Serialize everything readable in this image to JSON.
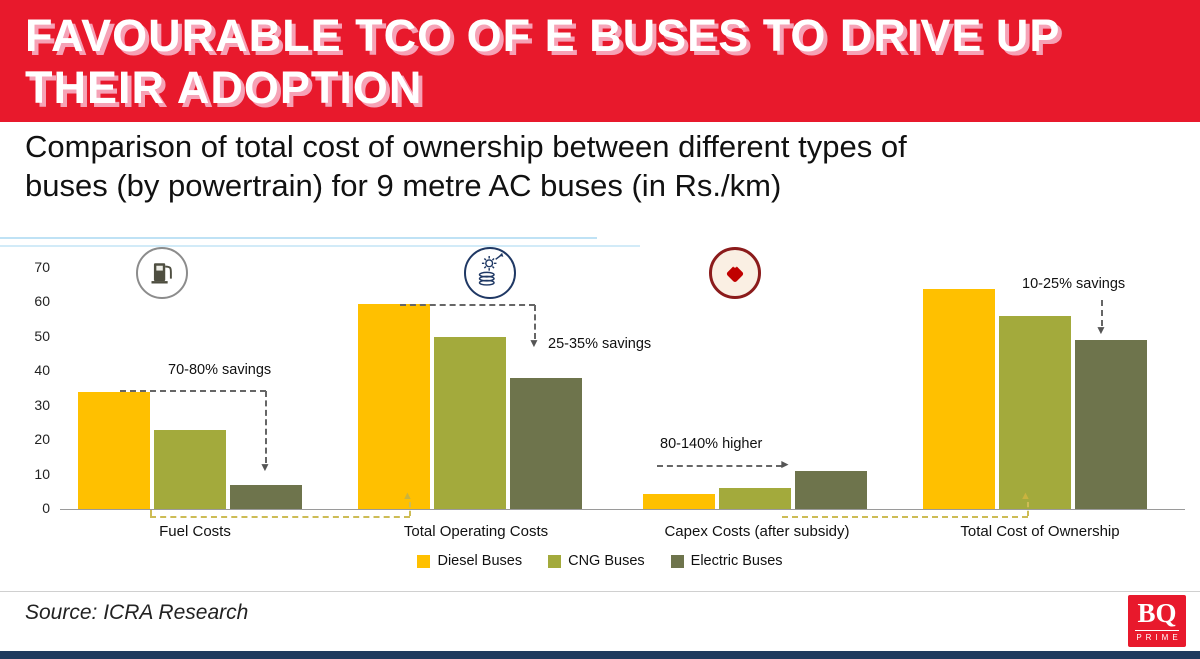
{
  "colors": {
    "accent_red": "#E8192C",
    "title_shadow": "#F6A2B6",
    "footer_strip": "#1F3A5E"
  },
  "header": {
    "title_line1": "FAVOURABLE TCO OF E BUSES TO DRIVE UP",
    "title_line2": "THEIR ADOPTION"
  },
  "subtitle": {
    "line1": "Comparison of total cost of ownership between different types of",
    "line2": "buses (by powertrain) for 9 metre AC buses (in Rs./km)"
  },
  "chart_data": {
    "type": "bar",
    "title": "",
    "unit": "Rs./km",
    "categories": [
      "Fuel Costs",
      "Total Operating Costs",
      "Capex Costs (after subsidy)",
      "Total Cost of Ownership"
    ],
    "series": [
      {
        "name": "Diesel Buses",
        "color": "#FFC000",
        "values": [
          34,
          59.5,
          4.5,
          64
        ]
      },
      {
        "name": "CNG Buses",
        "color": "#A3AA3C",
        "values": [
          23,
          50,
          6,
          56
        ]
      },
      {
        "name": "Electric Buses",
        "color": "#6E744C",
        "values": [
          7,
          38,
          11,
          49
        ]
      }
    ],
    "ylim": [
      0,
      70
    ],
    "yticks": [
      0,
      10,
      20,
      30,
      40,
      50,
      60,
      70
    ],
    "grid": false,
    "legend_position": "bottom",
    "annotations": [
      {
        "category": "Fuel Costs",
        "text": "70-80% savings"
      },
      {
        "category": "Total Operating Costs",
        "text": "25-35% savings"
      },
      {
        "category": "Capex Costs (after subsidy)",
        "text": "80-140% higher"
      },
      {
        "category": "Total Cost of Ownership",
        "text": "10-25% savings"
      }
    ],
    "icons": [
      "fuel-pump-icon",
      "operating-cost-icon",
      "price-tag-icon"
    ]
  },
  "footer": {
    "source": "Source: ICRA Research",
    "logo_top": "BQ",
    "logo_bottom": "PRIME"
  }
}
